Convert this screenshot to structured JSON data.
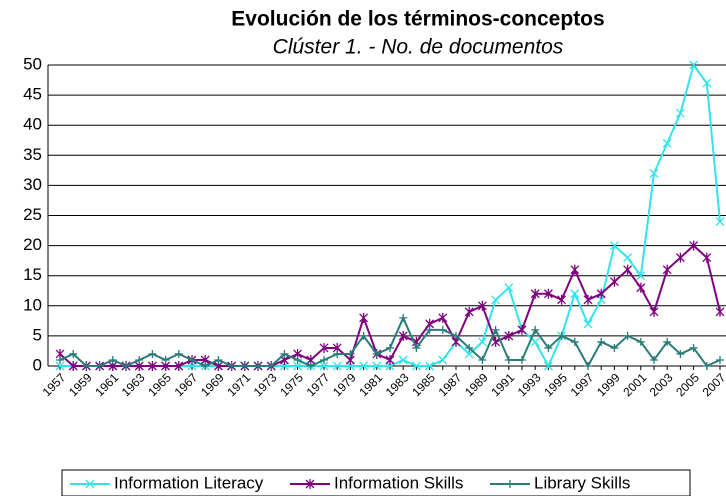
{
  "chart_data": {
    "type": "line",
    "title": "Evolución de los términos-conceptos",
    "subtitle": "Clúster 1. - No. de documentos",
    "categories": [
      "1957",
      null,
      "1959",
      null,
      "1961",
      null,
      "1963",
      null,
      "1965",
      null,
      "1967",
      null,
      "1969",
      null,
      "1971",
      null,
      "1973",
      null,
      "1975",
      null,
      "1977",
      null,
      "1979",
      null,
      "1981",
      null,
      "1983",
      null,
      "1985",
      null,
      "1987",
      null,
      "1989",
      null,
      "1991",
      null,
      "1993",
      null,
      "1995",
      null,
      "1997",
      null,
      "1999",
      null,
      "2001",
      null,
      "2003",
      null,
      "2005",
      null,
      "2007"
    ],
    "series": [
      {
        "name": "Information Literacy",
        "color": "#33e3ea",
        "marker": "x",
        "values": [
          0,
          0,
          0,
          0,
          0,
          0,
          0,
          0,
          0,
          0,
          0,
          0,
          0,
          0,
          0,
          0,
          0,
          0,
          0,
          0,
          0,
          0,
          0,
          0,
          0,
          0,
          1,
          0,
          0,
          1,
          4,
          2,
          4,
          11,
          13,
          6,
          4,
          0,
          5,
          12,
          7,
          11,
          20,
          18,
          15,
          32,
          37,
          42,
          50,
          47,
          24
        ]
      },
      {
        "name": "Information Skills",
        "color": "#800080",
        "marker": "star",
        "values": [
          2,
          0,
          0,
          0,
          0,
          0,
          0,
          0,
          0,
          0,
          1,
          1,
          0,
          0,
          0,
          0,
          0,
          1,
          2,
          1,
          3,
          3,
          1,
          8,
          2,
          1,
          5,
          4,
          7,
          8,
          4,
          9,
          10,
          4,
          5,
          6,
          12,
          12,
          11,
          16,
          11,
          12,
          14,
          16,
          13,
          9,
          16,
          18,
          20,
          18,
          9
        ]
      },
      {
        "name": "Library Skills",
        "color": "#2a7c78",
        "marker": "plus",
        "values": [
          1,
          2,
          0,
          0,
          1,
          0,
          1,
          2,
          1,
          2,
          1,
          0,
          1,
          0,
          0,
          0,
          0,
          2,
          1,
          0,
          1,
          2,
          2,
          5,
          2,
          3,
          8,
          3,
          6,
          6,
          5,
          3,
          1,
          6,
          1,
          1,
          6,
          3,
          5,
          4,
          0,
          4,
          3,
          5,
          4,
          1,
          4,
          2,
          3,
          0,
          1
        ]
      }
    ],
    "ylim": [
      0,
      50
    ],
    "yticks": [
      0,
      5,
      10,
      15,
      20,
      25,
      30,
      35,
      40,
      45,
      50
    ],
    "grid": true,
    "legend": "bottom"
  }
}
